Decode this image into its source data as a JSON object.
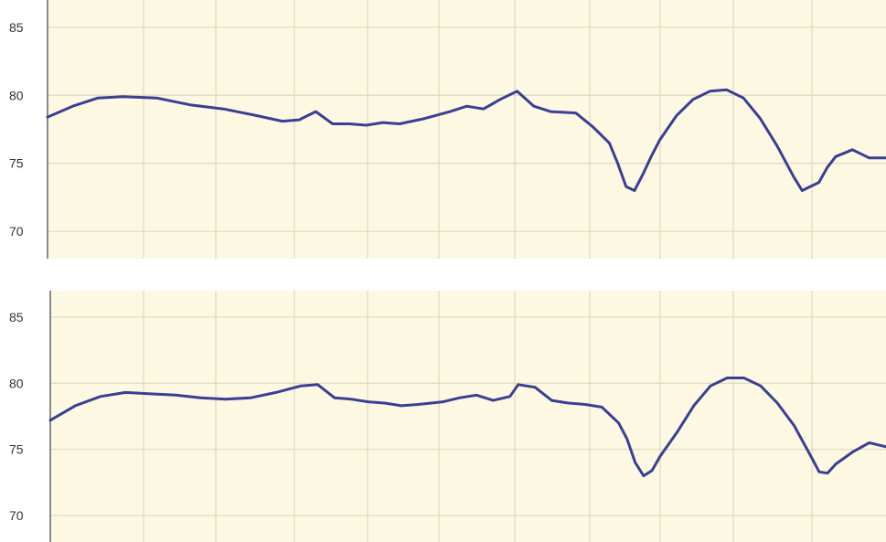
{
  "colors": {
    "plot_background": "#fdf8e1",
    "grid": "#ddd9c0",
    "axis": "#8a8a8a",
    "series_line": "#3a3f96"
  },
  "chart_data": [
    {
      "type": "line",
      "title": "",
      "xlabel": "",
      "ylabel": "",
      "ylim": [
        68,
        87
      ],
      "xlim": [
        0,
        100
      ],
      "y_ticks": [
        70,
        75,
        80,
        85
      ],
      "y_tick_labels": [
        "70",
        "75",
        "80",
        "85"
      ],
      "grid": true,
      "legend": "none",
      "series": [
        {
          "x": [
            0,
            3,
            6,
            9,
            13,
            17,
            21,
            25,
            28,
            30,
            32,
            34,
            36,
            38,
            40,
            42,
            45,
            48,
            50,
            52,
            54,
            56,
            58,
            60,
            63,
            65,
            67,
            68,
            69,
            70,
            71,
            72,
            73,
            75,
            77,
            79,
            81,
            83,
            85,
            87,
            89,
            90,
            92,
            93,
            94,
            96,
            98,
            100
          ],
          "y": [
            78.4,
            79.2,
            79.8,
            79.9,
            79.8,
            79.3,
            79.0,
            78.5,
            78.1,
            78.2,
            78.8,
            77.9,
            77.9,
            77.8,
            78.0,
            77.9,
            78.3,
            78.8,
            79.2,
            79.0,
            79.7,
            80.3,
            79.2,
            78.8,
            78.7,
            77.7,
            76.5,
            75.0,
            73.3,
            73.0,
            74.2,
            75.5,
            76.7,
            78.5,
            79.7,
            80.3,
            80.4,
            79.8,
            78.3,
            76.3,
            74.0,
            73.0,
            73.6,
            74.7,
            75.5,
            76.0,
            75.4,
            75.4
          ]
        }
      ]
    },
    {
      "type": "line",
      "title": "",
      "xlabel": "",
      "ylabel": "",
      "ylim": [
        68,
        87
      ],
      "xlim": [
        0,
        100
      ],
      "y_ticks": [
        70,
        75,
        80,
        85
      ],
      "y_tick_labels": [
        "70",
        "75",
        "80",
        "85"
      ],
      "grid": true,
      "legend": "none",
      "series": [
        {
          "x": [
            0,
            3,
            6,
            9,
            12,
            15,
            18,
            21,
            24,
            27,
            30,
            32,
            34,
            36,
            38,
            40,
            42,
            44,
            47,
            49,
            51,
            53,
            55,
            56,
            58,
            60,
            62,
            64,
            66,
            68,
            69,
            70,
            71,
            72,
            73,
            75,
            77,
            79,
            81,
            83,
            85,
            87,
            89,
            91,
            92,
            93,
            94,
            96,
            98,
            100
          ],
          "y": [
            77.2,
            78.3,
            79.0,
            79.3,
            79.2,
            79.1,
            78.9,
            78.8,
            78.9,
            79.3,
            79.8,
            79.9,
            78.9,
            78.8,
            78.6,
            78.5,
            78.3,
            78.4,
            78.6,
            78.9,
            79.1,
            78.7,
            79.0,
            79.9,
            79.7,
            78.7,
            78.5,
            78.4,
            78.2,
            77.0,
            75.8,
            74.0,
            73.0,
            73.4,
            74.5,
            76.3,
            78.3,
            79.8,
            80.4,
            80.4,
            79.8,
            78.5,
            76.8,
            74.5,
            73.3,
            73.2,
            73.9,
            74.8,
            75.5,
            75.2
          ]
        }
      ]
    }
  ]
}
